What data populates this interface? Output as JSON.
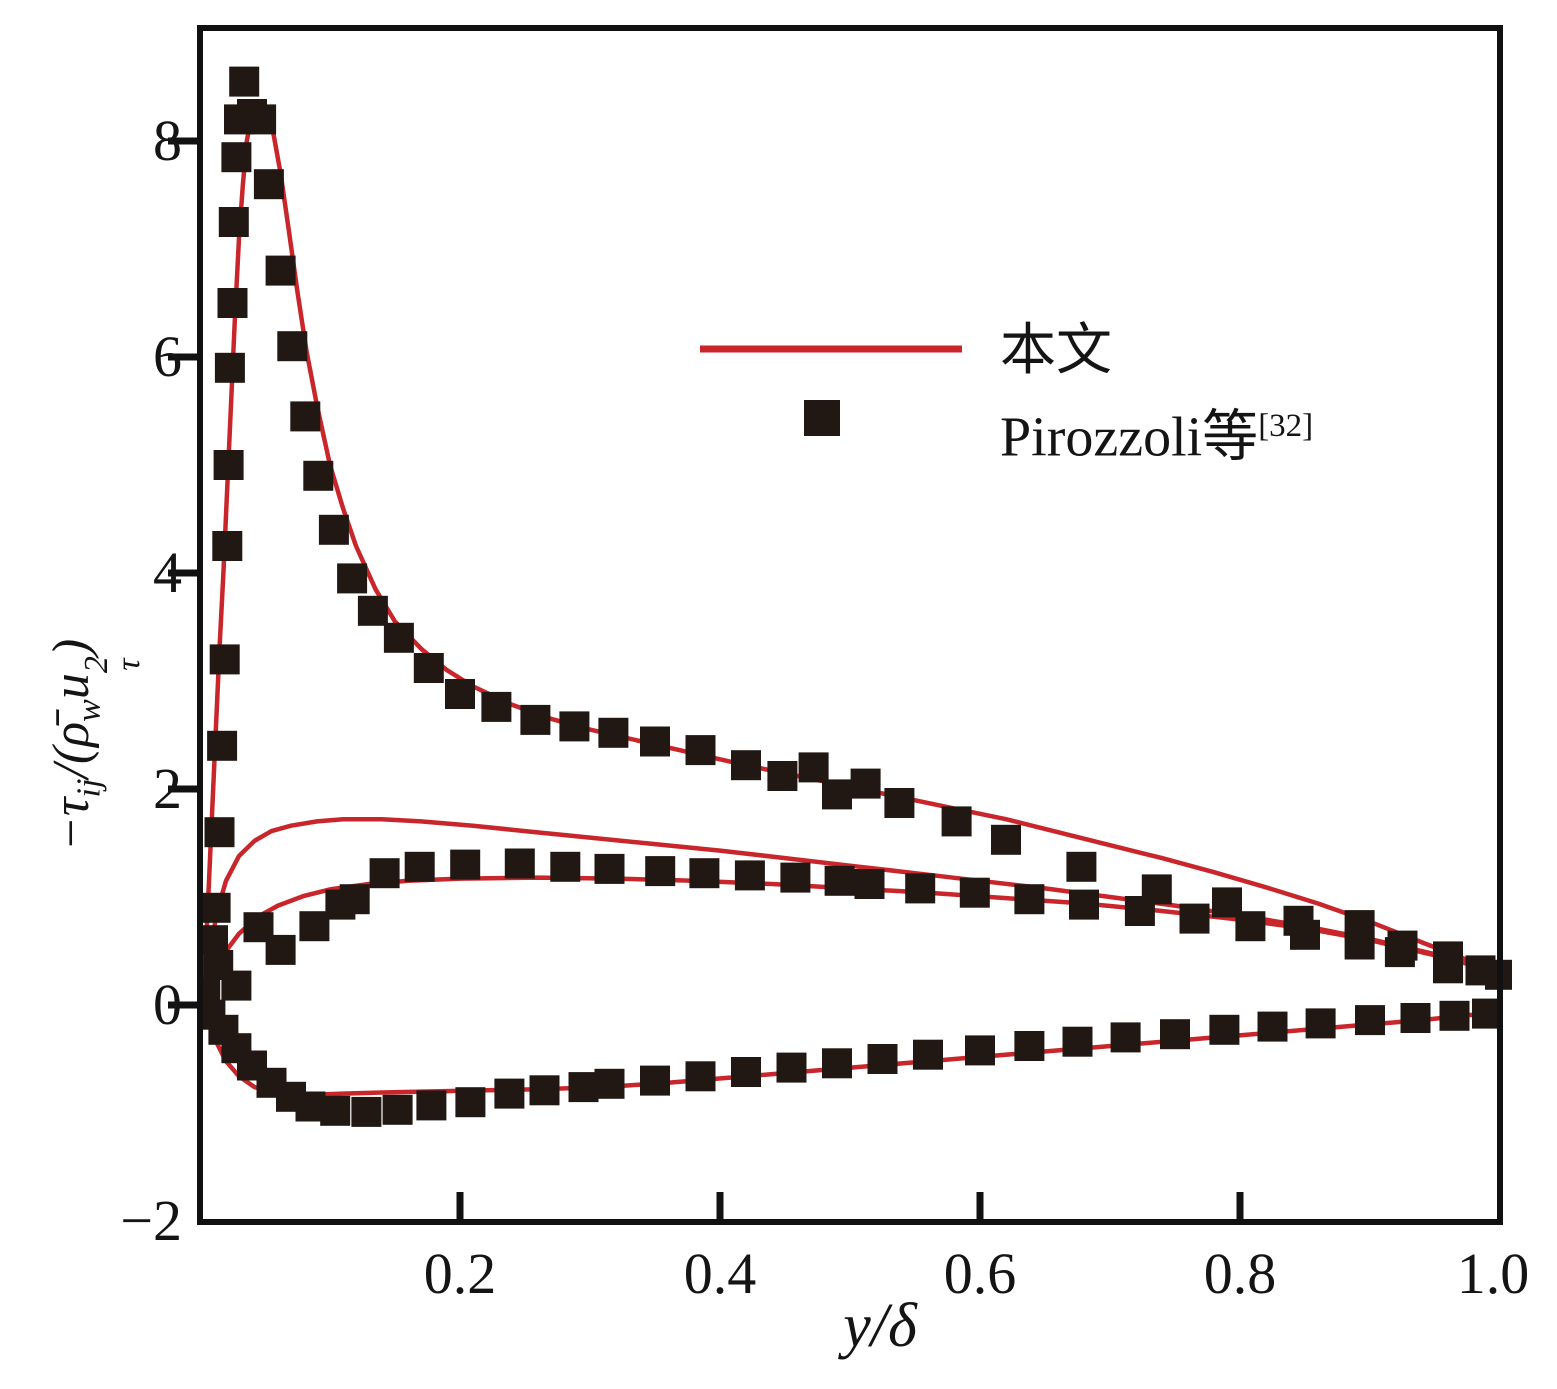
{
  "colors": {
    "line": "#c8262b",
    "marker": "#221813",
    "axis": "#111111",
    "background": "#ffffff"
  },
  "axes": {
    "x": {
      "label": "y/δ",
      "ticks": [
        "0.2",
        "0.4",
        "0.6",
        "0.8",
        "1.0"
      ]
    },
    "y": {
      "ticks": [
        "8",
        "6",
        "4",
        "2",
        "0",
        "−2"
      ],
      "label_parts": {
        "p_minus_tau": "−τ",
        "sub_ij": "ij",
        "p_slash_open": "/(",
        "rho_bar": "ρ̄",
        "sub_w": "w",
        "u": "u",
        "sup_2": "2",
        "sub_tau": "τ",
        "p_close": ")"
      }
    }
  },
  "legend": {
    "entries": [
      {
        "label": "本文",
        "sup": "",
        "swatch": "line"
      },
      {
        "label": "Pirozzoli等",
        "sup": "[32]",
        "swatch": "square"
      }
    ]
  },
  "chart_data": {
    "type": "line",
    "title": "",
    "xlabel": "y/δ",
    "ylabel": "−τij/(ρ̄w uτ²)",
    "xlim": [
      0,
      1.0
    ],
    "ylim": [
      -2,
      9.05
    ],
    "grid": false,
    "legend_position": "upper-center-right",
    "series": [
      {
        "name": "tau11-line",
        "legend": "本文",
        "points": [
          [
            0.003,
            0.2
          ],
          [
            0.006,
            0.9
          ],
          [
            0.009,
            1.7
          ],
          [
            0.012,
            2.5
          ],
          [
            0.015,
            3.3
          ],
          [
            0.018,
            4.0
          ],
          [
            0.021,
            4.8
          ],
          [
            0.024,
            5.6
          ],
          [
            0.027,
            6.4
          ],
          [
            0.03,
            7.1
          ],
          [
            0.033,
            7.6
          ],
          [
            0.036,
            8.0
          ],
          [
            0.04,
            8.25
          ],
          [
            0.045,
            8.35
          ],
          [
            0.05,
            8.33
          ],
          [
            0.056,
            8.1
          ],
          [
            0.062,
            7.7
          ],
          [
            0.068,
            7.2
          ],
          [
            0.075,
            6.6
          ],
          [
            0.082,
            6.05
          ],
          [
            0.09,
            5.55
          ],
          [
            0.1,
            5.0
          ],
          [
            0.11,
            4.6
          ],
          [
            0.12,
            4.25
          ],
          [
            0.135,
            3.85
          ],
          [
            0.15,
            3.55
          ],
          [
            0.17,
            3.3
          ],
          [
            0.19,
            3.1
          ],
          [
            0.21,
            2.95
          ],
          [
            0.24,
            2.78
          ],
          [
            0.27,
            2.65
          ],
          [
            0.3,
            2.55
          ],
          [
            0.34,
            2.44
          ],
          [
            0.38,
            2.33
          ],
          [
            0.42,
            2.22
          ],
          [
            0.46,
            2.12
          ],
          [
            0.5,
            2.02
          ],
          [
            0.54,
            1.92
          ],
          [
            0.58,
            1.82
          ],
          [
            0.62,
            1.72
          ],
          [
            0.66,
            1.6
          ],
          [
            0.7,
            1.48
          ],
          [
            0.74,
            1.36
          ],
          [
            0.78,
            1.23
          ],
          [
            0.82,
            1.09
          ],
          [
            0.86,
            0.94
          ],
          [
            0.9,
            0.77
          ],
          [
            0.94,
            0.58
          ],
          [
            0.97,
            0.44
          ],
          [
            1.0,
            0.3
          ]
        ]
      },
      {
        "name": "tau33-line",
        "legend": "本文",
        "points": [
          [
            0.003,
            0.2
          ],
          [
            0.008,
            0.55
          ],
          [
            0.014,
            0.9
          ],
          [
            0.02,
            1.15
          ],
          [
            0.03,
            1.38
          ],
          [
            0.042,
            1.52
          ],
          [
            0.055,
            1.61
          ],
          [
            0.07,
            1.66
          ],
          [
            0.09,
            1.7
          ],
          [
            0.11,
            1.72
          ],
          [
            0.14,
            1.72
          ],
          [
            0.17,
            1.7
          ],
          [
            0.21,
            1.66
          ],
          [
            0.25,
            1.61
          ],
          [
            0.3,
            1.55
          ],
          [
            0.35,
            1.49
          ],
          [
            0.4,
            1.43
          ],
          [
            0.45,
            1.36
          ],
          [
            0.5,
            1.29
          ],
          [
            0.55,
            1.22
          ],
          [
            0.6,
            1.15
          ],
          [
            0.65,
            1.08
          ],
          [
            0.7,
            1.0
          ],
          [
            0.75,
            0.92
          ],
          [
            0.8,
            0.83
          ],
          [
            0.85,
            0.73
          ],
          [
            0.9,
            0.61
          ],
          [
            0.95,
            0.47
          ],
          [
            1.0,
            0.31
          ]
        ]
      },
      {
        "name": "tau22-line",
        "legend": "本文",
        "points": [
          [
            0.003,
            0.1
          ],
          [
            0.01,
            0.3
          ],
          [
            0.02,
            0.5
          ],
          [
            0.03,
            0.66
          ],
          [
            0.045,
            0.82
          ],
          [
            0.06,
            0.92
          ],
          [
            0.08,
            1.01
          ],
          [
            0.1,
            1.07
          ],
          [
            0.13,
            1.12
          ],
          [
            0.16,
            1.15
          ],
          [
            0.2,
            1.17
          ],
          [
            0.26,
            1.18
          ],
          [
            0.32,
            1.17
          ],
          [
            0.38,
            1.15
          ],
          [
            0.44,
            1.12
          ],
          [
            0.5,
            1.08
          ],
          [
            0.56,
            1.04
          ],
          [
            0.62,
            0.99
          ],
          [
            0.68,
            0.94
          ],
          [
            0.74,
            0.87
          ],
          [
            0.8,
            0.79
          ],
          [
            0.85,
            0.71
          ],
          [
            0.9,
            0.6
          ],
          [
            0.95,
            0.46
          ],
          [
            1.0,
            0.3
          ]
        ]
      },
      {
        "name": "tau12-line",
        "legend": "本文",
        "points": [
          [
            0.002,
            0.0
          ],
          [
            0.006,
            -0.15
          ],
          [
            0.012,
            -0.33
          ],
          [
            0.02,
            -0.52
          ],
          [
            0.03,
            -0.66
          ],
          [
            0.042,
            -0.76
          ],
          [
            0.055,
            -0.81
          ],
          [
            0.07,
            -0.83
          ],
          [
            0.09,
            -0.83
          ],
          [
            0.11,
            -0.82
          ],
          [
            0.14,
            -0.81
          ],
          [
            0.18,
            -0.8
          ],
          [
            0.22,
            -0.79
          ],
          [
            0.26,
            -0.78
          ],
          [
            0.31,
            -0.76
          ],
          [
            0.36,
            -0.72
          ],
          [
            0.41,
            -0.67
          ],
          [
            0.46,
            -0.62
          ],
          [
            0.51,
            -0.57
          ],
          [
            0.56,
            -0.52
          ],
          [
            0.61,
            -0.47
          ],
          [
            0.66,
            -0.42
          ],
          [
            0.71,
            -0.37
          ],
          [
            0.76,
            -0.32
          ],
          [
            0.81,
            -0.27
          ],
          [
            0.86,
            -0.22
          ],
          [
            0.9,
            -0.18
          ],
          [
            0.94,
            -0.14
          ],
          [
            0.97,
            -0.1
          ],
          [
            1.0,
            -0.07
          ]
        ]
      }
    ],
    "marker_series": [
      {
        "name": "tau11-data",
        "legend": "Pirozzoli等[32]",
        "points": [
          [
            0.012,
            0.9
          ],
          [
            0.015,
            1.6
          ],
          [
            0.017,
            2.4
          ],
          [
            0.019,
            3.2
          ],
          [
            0.021,
            4.25
          ],
          [
            0.022,
            5.0
          ],
          [
            0.023,
            5.9
          ],
          [
            0.025,
            6.5
          ],
          [
            0.026,
            7.25
          ],
          [
            0.028,
            7.85
          ],
          [
            0.03,
            8.2
          ],
          [
            0.034,
            8.55
          ],
          [
            0.04,
            8.25
          ],
          [
            0.047,
            8.2
          ],
          [
            0.053,
            7.6
          ],
          [
            0.062,
            6.8
          ],
          [
            0.071,
            6.1
          ],
          [
            0.081,
            5.45
          ],
          [
            0.091,
            4.9
          ],
          [
            0.103,
            4.4
          ],
          [
            0.117,
            3.95
          ],
          [
            0.133,
            3.65
          ],
          [
            0.153,
            3.4
          ],
          [
            0.176,
            3.12
          ],
          [
            0.2,
            2.88
          ],
          [
            0.228,
            2.76
          ],
          [
            0.258,
            2.64
          ],
          [
            0.288,
            2.58
          ],
          [
            0.318,
            2.52
          ],
          [
            0.35,
            2.44
          ],
          [
            0.385,
            2.36
          ],
          [
            0.42,
            2.22
          ],
          [
            0.448,
            2.12
          ],
          [
            0.472,
            2.2
          ],
          [
            0.49,
            1.95
          ],
          [
            0.512,
            2.05
          ],
          [
            0.538,
            1.87
          ],
          [
            0.582,
            1.7
          ],
          [
            0.62,
            1.53
          ],
          [
            0.678,
            1.28
          ],
          [
            0.736,
            1.07
          ],
          [
            0.79,
            0.95
          ],
          [
            0.845,
            0.78
          ],
          [
            0.892,
            0.74
          ],
          [
            0.925,
            0.55
          ],
          [
            0.96,
            0.45
          ]
        ]
      },
      {
        "name": "tau22-data",
        "legend": "Pirozzoli等[32]",
        "points": [
          [
            0.004,
            0.12
          ],
          [
            0.01,
            0.6
          ],
          [
            0.014,
            0.37
          ],
          [
            0.028,
            0.18
          ],
          [
            0.045,
            0.72
          ],
          [
            0.062,
            0.51
          ],
          [
            0.088,
            0.73
          ],
          [
            0.108,
            0.93
          ],
          [
            0.119,
            0.98
          ],
          [
            0.142,
            1.22
          ],
          [
            0.169,
            1.28
          ],
          [
            0.204,
            1.3
          ],
          [
            0.246,
            1.31
          ],
          [
            0.281,
            1.28
          ],
          [
            0.315,
            1.26
          ],
          [
            0.354,
            1.24
          ],
          [
            0.388,
            1.22
          ],
          [
            0.423,
            1.2
          ],
          [
            0.458,
            1.18
          ],
          [
            0.492,
            1.15
          ],
          [
            0.515,
            1.12
          ],
          [
            0.554,
            1.08
          ],
          [
            0.596,
            1.04
          ],
          [
            0.638,
            0.98
          ],
          [
            0.68,
            0.93
          ],
          [
            0.723,
            0.87
          ],
          [
            0.765,
            0.8
          ],
          [
            0.808,
            0.73
          ],
          [
            0.85,
            0.65
          ],
          [
            0.892,
            0.56
          ],
          [
            0.923,
            0.49
          ],
          [
            0.96,
            0.34
          ],
          [
            0.985,
            0.32
          ],
          [
            1.0,
            0.28
          ]
        ]
      },
      {
        "name": "tau12-data",
        "legend": "Pirozzoli等[32]",
        "points": [
          [
            0.002,
            -0.02
          ],
          [
            0.008,
            -0.09
          ],
          [
            0.018,
            -0.23
          ],
          [
            0.028,
            -0.4
          ],
          [
            0.04,
            -0.56
          ],
          [
            0.055,
            -0.72
          ],
          [
            0.07,
            -0.85
          ],
          [
            0.085,
            -0.94
          ],
          [
            0.104,
            -0.98
          ],
          [
            0.128,
            -0.99
          ],
          [
            0.152,
            -0.97
          ],
          [
            0.178,
            -0.93
          ],
          [
            0.208,
            -0.9
          ],
          [
            0.238,
            -0.82
          ],
          [
            0.265,
            -0.79
          ],
          [
            0.295,
            -0.76
          ],
          [
            0.315,
            -0.73
          ],
          [
            0.35,
            -0.7
          ],
          [
            0.385,
            -0.66
          ],
          [
            0.42,
            -0.62
          ],
          [
            0.455,
            -0.58
          ],
          [
            0.49,
            -0.54
          ],
          [
            0.525,
            -0.5
          ],
          [
            0.56,
            -0.46
          ],
          [
            0.6,
            -0.42
          ],
          [
            0.638,
            -0.38
          ],
          [
            0.675,
            -0.34
          ],
          [
            0.712,
            -0.3
          ],
          [
            0.75,
            -0.27
          ],
          [
            0.788,
            -0.23
          ],
          [
            0.825,
            -0.2
          ],
          [
            0.862,
            -0.17
          ],
          [
            0.9,
            -0.14
          ],
          [
            0.935,
            -0.12
          ],
          [
            0.965,
            -0.1
          ],
          [
            0.99,
            -0.08
          ]
        ]
      }
    ]
  }
}
